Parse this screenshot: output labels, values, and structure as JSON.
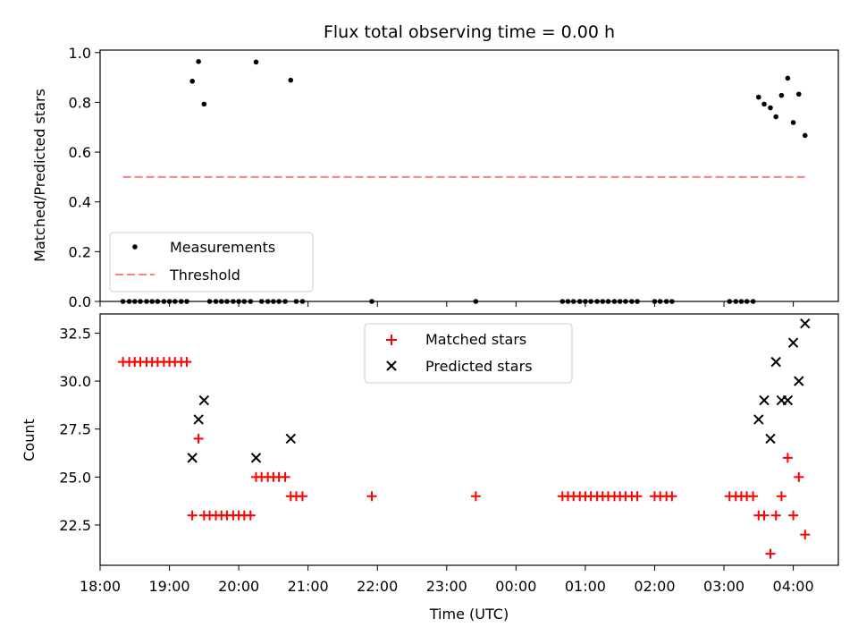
{
  "chart_data": [
    {
      "type": "scatter",
      "title": "Flux total observing time = 0.00 h",
      "xlabel": "",
      "ylabel": "Matched/Predicted stars",
      "ylim": [
        0.0,
        1.01
      ],
      "yticks": [
        0.0,
        0.2,
        0.4,
        0.6,
        0.8,
        1.0
      ],
      "ytick_labels": [
        "0.0",
        "0.2",
        "0.4",
        "0.6",
        "0.8",
        "1.0"
      ],
      "legend": {
        "placement": "lower-left",
        "entries": [
          "Measurements",
          "Threshold"
        ]
      },
      "series": [
        {
          "name": "Measurements",
          "marker": "dot",
          "color": "#000000",
          "x": [
            18.33,
            18.42,
            18.5,
            18.58,
            18.67,
            18.75,
            18.83,
            18.92,
            19.0,
            19.08,
            19.17,
            19.25,
            19.33,
            19.42,
            19.5,
            19.58,
            19.67,
            19.75,
            19.83,
            19.92,
            20.0,
            20.08,
            20.17,
            20.25,
            20.33,
            20.42,
            20.5,
            20.58,
            20.67,
            20.75,
            20.83,
            20.92,
            21.92,
            23.42,
            24.67,
            24.75,
            24.83,
            24.92,
            25.0,
            25.08,
            25.17,
            25.25,
            25.33,
            25.42,
            25.5,
            25.58,
            25.67,
            25.75,
            26.0,
            26.08,
            26.17,
            26.25,
            27.08,
            27.17,
            27.25,
            27.33,
            27.42,
            27.5,
            27.58,
            27.67,
            27.75,
            27.83,
            27.92,
            28.0,
            28.08,
            28.17
          ],
          "y": [
            0,
            0,
            0,
            0,
            0,
            0,
            0,
            0,
            0,
            0,
            0,
            0,
            0.885,
            0.964,
            0.793,
            0,
            0,
            0,
            0,
            0,
            0,
            0,
            0,
            0.962,
            0,
            0,
            0,
            0,
            0,
            0.889,
            0,
            0,
            0,
            0,
            0,
            0,
            0,
            0,
            0,
            0,
            0,
            0,
            0,
            0,
            0,
            0,
            0,
            0,
            0,
            0,
            0,
            0,
            0,
            0,
            0,
            0,
            0,
            0.821,
            0.793,
            0.778,
            0.742,
            0.828,
            0.897,
            0.719,
            0.833,
            0.667
          ]
        },
        {
          "name": "Threshold",
          "style": "dashed",
          "color": "#ff7f7f",
          "x": [
            18.33,
            28.17
          ],
          "y": [
            0.5,
            0.5
          ]
        }
      ]
    },
    {
      "type": "scatter",
      "title": "",
      "xlabel": "Time (UTC)",
      "ylabel": "Count",
      "ylim": [
        20.4,
        33.5
      ],
      "yticks": [
        22.5,
        25.0,
        27.5,
        30.0,
        32.5
      ],
      "ytick_labels": [
        "22.5",
        "25.0",
        "27.5",
        "30.0",
        "32.5"
      ],
      "legend": {
        "placement": "upper-center",
        "entries": [
          "Matched stars",
          "Predicted stars"
        ]
      },
      "series": [
        {
          "name": "Matched stars",
          "marker": "plus",
          "color": "#ff0000",
          "x": [
            18.33,
            18.42,
            18.5,
            18.58,
            18.67,
            18.75,
            18.83,
            18.92,
            19.0,
            19.08,
            19.17,
            19.25,
            19.33,
            19.42,
            19.5,
            19.58,
            19.67,
            19.75,
            19.83,
            19.92,
            20.0,
            20.08,
            20.17,
            20.25,
            20.33,
            20.42,
            20.5,
            20.58,
            20.67,
            20.75,
            20.83,
            20.92,
            21.92,
            23.42,
            24.67,
            24.75,
            24.83,
            24.92,
            25.0,
            25.08,
            25.17,
            25.25,
            25.33,
            25.42,
            25.5,
            25.58,
            25.67,
            25.75,
            26.0,
            26.08,
            26.17,
            26.25,
            27.08,
            27.17,
            27.25,
            27.33,
            27.42,
            27.5,
            27.58,
            27.67,
            27.75,
            27.83,
            27.92,
            28.0,
            28.08,
            28.17
          ],
          "y": [
            31,
            31,
            31,
            31,
            31,
            31,
            31,
            31,
            31,
            31,
            31,
            31,
            23,
            27,
            23,
            23,
            23,
            23,
            23,
            23,
            23,
            23,
            23,
            25,
            25,
            25,
            25,
            25,
            25,
            24,
            24,
            24,
            24,
            24,
            24,
            24,
            24,
            24,
            24,
            24,
            24,
            24,
            24,
            24,
            24,
            24,
            24,
            24,
            24,
            24,
            24,
            24,
            24,
            24,
            24,
            24,
            24,
            23,
            23,
            21,
            23,
            24,
            26,
            23,
            25,
            22
          ]
        },
        {
          "name": "Predicted stars",
          "marker": "x",
          "color": "#000000",
          "x": [
            19.33,
            19.42,
            19.5,
            20.25,
            20.75,
            27.5,
            27.58,
            27.67,
            27.75,
            27.83,
            27.92,
            28.0,
            28.08,
            28.17
          ],
          "y": [
            26,
            28,
            29,
            26,
            27,
            28,
            29,
            27,
            31,
            29,
            29,
            32,
            30,
            33
          ]
        }
      ]
    }
  ],
  "x_axis": {
    "range": [
      18.0,
      28.65
    ],
    "ticks": [
      18,
      19,
      20,
      21,
      22,
      23,
      24,
      25,
      26,
      27,
      28
    ],
    "tick_labels": [
      "18:00",
      "19:00",
      "20:00",
      "21:00",
      "22:00",
      "23:00",
      "00:00",
      "01:00",
      "02:00",
      "03:00",
      "04:00"
    ]
  }
}
